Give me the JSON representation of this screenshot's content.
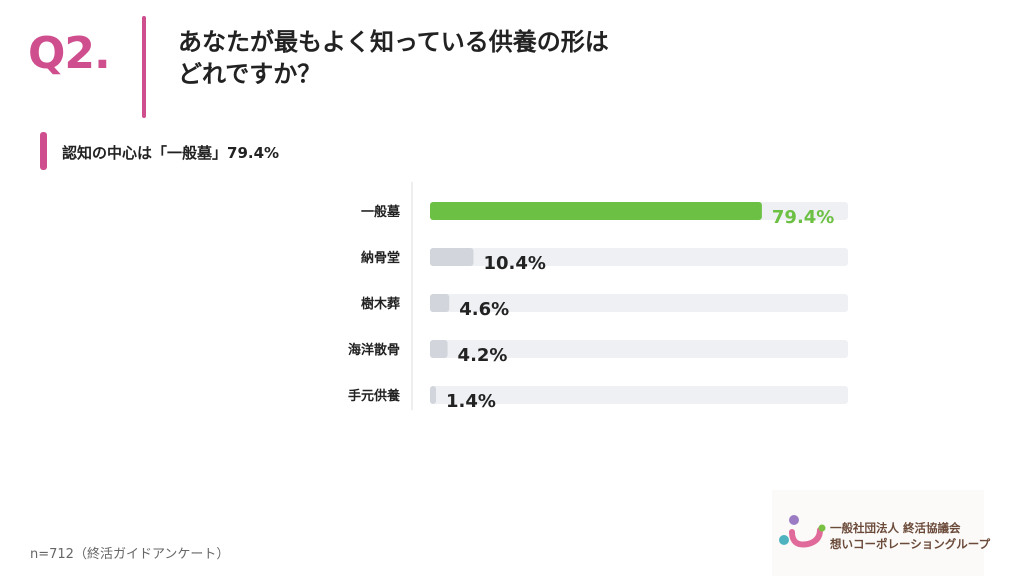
{
  "header": {
    "question_number": "Q2.",
    "title_line1": "あなたが最もよく知っている供養の形は",
    "title_line2": "どれですか？"
  },
  "subtitle": "認知の中心は「一般墓」79.4%",
  "chart_data": {
    "type": "bar",
    "orientation": "horizontal",
    "categories": [
      "一般墓",
      "納骨堂",
      "樹木葬",
      "海洋散骨",
      "手元供養"
    ],
    "values": [
      79.4,
      10.4,
      4.6,
      4.2,
      1.4
    ],
    "value_labels": [
      "79.4%",
      "10.4%",
      "4.6%",
      "4.2%",
      "1.4%"
    ],
    "xlim": [
      0,
      100
    ],
    "highlight_index": 0,
    "colors": {
      "highlight": "#6cc043",
      "bar": "#d2d5db",
      "track": "#eef0f3"
    }
  },
  "footnote": "n=712（終活ガイドアンケート）",
  "logo": {
    "line1": "一般社団法人 終活協議会",
    "line2": "想いコーポレーショングループ"
  }
}
